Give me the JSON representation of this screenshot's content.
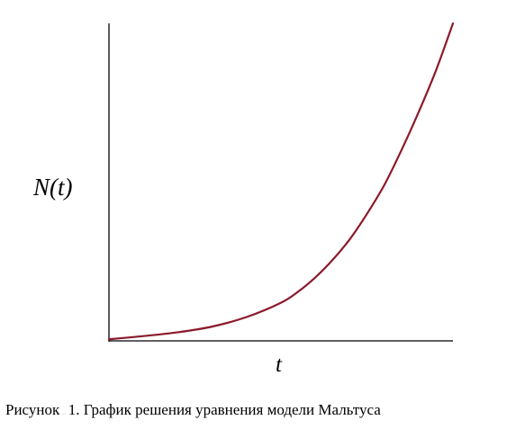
{
  "figure": {
    "caption_prefix": "Рисунок",
    "caption_text": "1. График решения уравнения модели Мальтуса"
  },
  "colors": {
    "curve": "#8b1a2b",
    "axes": "#000000",
    "background": "#ffffff"
  },
  "chart_data": {
    "type": "line",
    "title": "",
    "xlabel": "t",
    "ylabel": "N(t)",
    "xlim": [
      0,
      1
    ],
    "ylim": [
      0,
      1
    ],
    "grid": false,
    "legend": "none",
    "ticks": "none",
    "series": [
      {
        "x": [
          0,
          0.1,
          0.2,
          0.3,
          0.4,
          0.5,
          0.55,
          0.6,
          0.65,
          0.7,
          0.75,
          0.8,
          0.85,
          0.9,
          0.95,
          1.0
        ],
        "y": [
          0.005,
          0.015,
          0.027,
          0.045,
          0.075,
          0.12,
          0.155,
          0.2,
          0.255,
          0.32,
          0.4,
          0.49,
          0.6,
          0.72,
          0.85,
          1.0
        ]
      }
    ]
  }
}
